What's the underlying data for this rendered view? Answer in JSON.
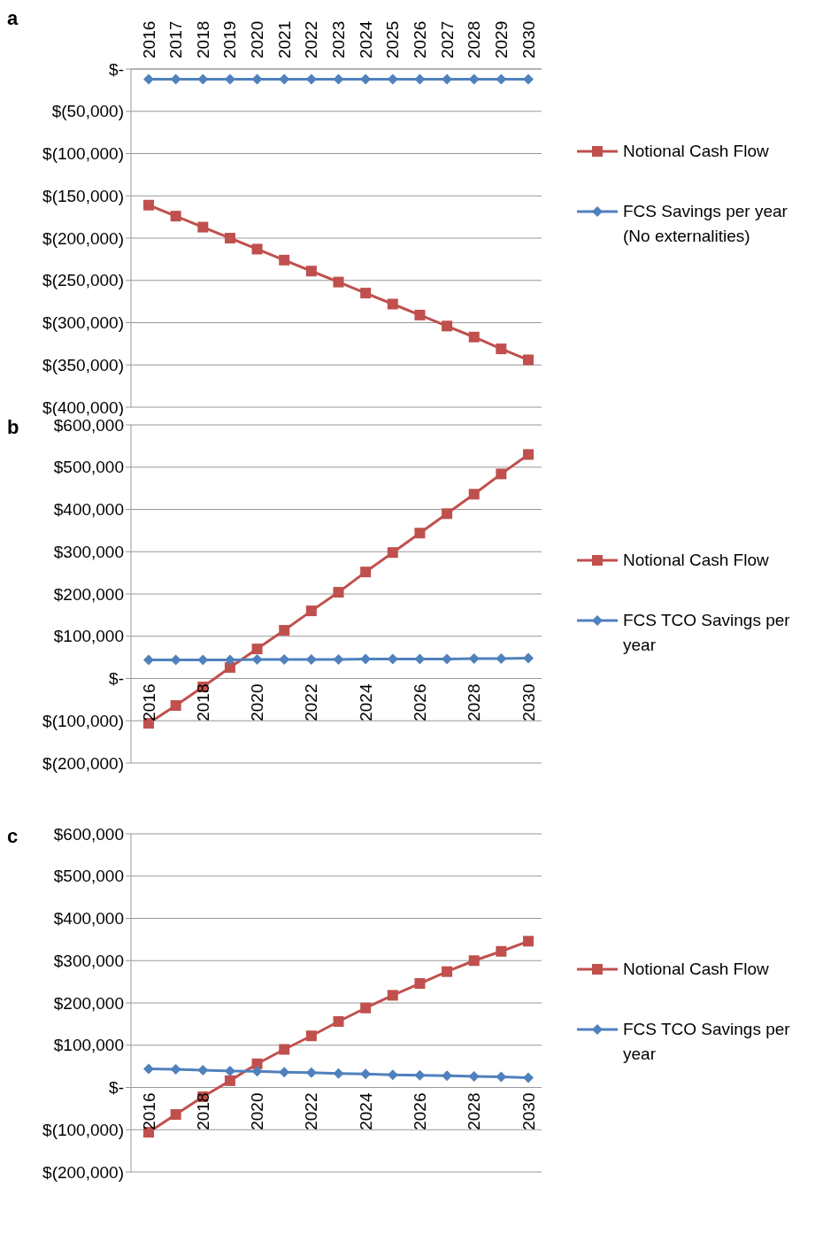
{
  "chart_data": [
    {
      "type": "line",
      "title": "a",
      "categories": [
        "2016",
        "2017",
        "2018",
        "2019",
        "2020",
        "2021",
        "2022",
        "2023",
        "2024",
        "2025",
        "2026",
        "2027",
        "2028",
        "2029",
        "2030"
      ],
      "series": [
        {
          "name": "Notional Cash Flow",
          "color": "#c0504d",
          "marker": "square",
          "values": [
            -161000,
            -174000,
            -187000,
            -200000,
            -213000,
            -226000,
            -239000,
            -252000,
            -265000,
            -278000,
            -291000,
            -304000,
            -317000,
            -331000,
            -344000
          ]
        },
        {
          "name": "FCS Savings per year (No externalities)",
          "color": "#4f81bd",
          "marker": "diamond",
          "values": [
            -12000,
            -12000,
            -12000,
            -12000,
            -12000,
            -12000,
            -12000,
            -12000,
            -12000,
            -12000,
            -12000,
            -12000,
            -12000,
            -12000,
            -12000
          ]
        }
      ],
      "ylim": [
        -400000,
        0
      ],
      "yticks": [
        {
          "value": 0,
          "label": "$-"
        },
        {
          "value": -50000,
          "label": "$(50,000)"
        },
        {
          "value": -100000,
          "label": "$(100,000)"
        },
        {
          "value": -150000,
          "label": "$(150,000)"
        },
        {
          "value": -200000,
          "label": "$(200,000)"
        },
        {
          "value": -250000,
          "label": "$(250,000)"
        },
        {
          "value": -300000,
          "label": "$(300,000)"
        },
        {
          "value": -350000,
          "label": "$(350,000)"
        },
        {
          "value": -400000,
          "label": "$(400,000)"
        }
      ],
      "grid": "y",
      "legend": "right",
      "line_style": "solid"
    },
    {
      "type": "line",
      "title": "b",
      "categories": [
        "2016",
        null,
        "2018",
        null,
        "2020",
        null,
        "2022",
        null,
        "2024",
        null,
        "2026",
        null,
        "2028",
        null,
        "2030"
      ],
      "series": [
        {
          "name": "Notional Cash Flow",
          "color": "#c0504d",
          "marker": "square",
          "values": [
            -106000,
            -64000,
            -20000,
            26000,
            70000,
            114000,
            160000,
            204000,
            252000,
            298000,
            344000,
            390000,
            436000,
            484000,
            530000
          ]
        },
        {
          "name": "FCS TCO Savings per year",
          "color": "#4f81bd",
          "marker": "diamond",
          "values": [
            44000,
            44000,
            44000,
            44000,
            45000,
            45000,
            45000,
            45000,
            46000,
            46000,
            46000,
            46000,
            47000,
            47000,
            48000
          ]
        }
      ],
      "ylim": [
        -200000,
        600000
      ],
      "yticks": [
        {
          "value": 600000,
          "label": "$600,000"
        },
        {
          "value": 500000,
          "label": "$500,000"
        },
        {
          "value": 400000,
          "label": "$400,000"
        },
        {
          "value": 300000,
          "label": "$300,000"
        },
        {
          "value": 200000,
          "label": "$200,000"
        },
        {
          "value": 100000,
          "label": "$100,000"
        },
        {
          "value": 0,
          "label": "$-"
        },
        {
          "value": -100000,
          "label": "$(100,000)"
        },
        {
          "value": -200000,
          "label": "$(200,000)"
        }
      ],
      "grid": "y",
      "legend": "right",
      "line_style": "solid"
    },
    {
      "type": "line",
      "title": "c",
      "categories": [
        "2016",
        null,
        "2018",
        null,
        "2020",
        null,
        "2022",
        null,
        "2024",
        null,
        "2026",
        null,
        "2028",
        null,
        "2030"
      ],
      "series": [
        {
          "name": "Notional Cash Flow",
          "color": "#c0504d",
          "marker": "square",
          "values": [
            -106000,
            -64000,
            -22000,
            16000,
            56000,
            90000,
            122000,
            156000,
            188000,
            218000,
            246000,
            274000,
            300000,
            322000,
            346000
          ]
        },
        {
          "name": "FCS TCO Savings per year",
          "color": "#4f81bd",
          "marker": "diamond",
          "values": [
            44000,
            43000,
            41000,
            39000,
            38000,
            36000,
            35000,
            33000,
            32000,
            30000,
            29000,
            28000,
            26000,
            25000,
            23000
          ]
        }
      ],
      "ylim": [
        -200000,
        600000
      ],
      "yticks": [
        {
          "value": 600000,
          "label": "$600,000"
        },
        {
          "value": 500000,
          "label": "$500,000"
        },
        {
          "value": 400000,
          "label": "$400,000"
        },
        {
          "value": 300000,
          "label": "$300,000"
        },
        {
          "value": 200000,
          "label": "$200,000"
        },
        {
          "value": 100000,
          "label": "$100,000"
        },
        {
          "value": 0,
          "label": "$-"
        },
        {
          "value": -100000,
          "label": "$(100,000)"
        },
        {
          "value": -200000,
          "label": "$(200,000)"
        }
      ],
      "grid": "y",
      "legend": "right",
      "line_style": "solid"
    }
  ]
}
